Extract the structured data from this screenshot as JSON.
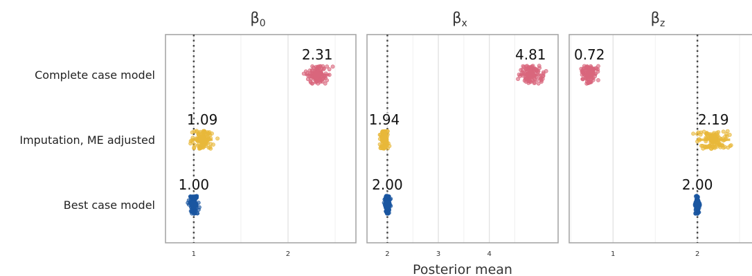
{
  "chart_data": {
    "type": "scatter",
    "x_axis_title": "Posterior mean",
    "rows": [
      "Complete case model",
      "Imputation, ME adjusted",
      "Best case model"
    ],
    "colors": {
      "Complete case model": "#d9667c",
      "Imputation, ME adjusted": "#e8b83a",
      "Best case model": "#1a56a0"
    },
    "reference_line": "dotted vertical line at the true parameter value",
    "facets": [
      {
        "title_main": "β",
        "title_sub": "0",
        "xlim": [
          0.7,
          2.72
        ],
        "ticks": [
          1,
          2
        ],
        "tick_labels": [
          "1",
          "2"
        ],
        "true_value": 1,
        "estimates": [
          {
            "row": "Complete case model",
            "mean": 2.31,
            "label": "2.31",
            "min": 2.1,
            "max": 2.67,
            "spread": 0.12
          },
          {
            "row": "Imputation, ME adjusted",
            "mean": 1.09,
            "label": "1.09",
            "min": 0.77,
            "max": 1.39,
            "spread": 0.1
          },
          {
            "row": "Best case model",
            "mean": 1.0,
            "label": "1.00",
            "min": 0.89,
            "max": 1.1,
            "spread": 0.04
          }
        ]
      },
      {
        "title_main": "β",
        "title_sub": "x",
        "xlim": [
          1.6,
          5.35
        ],
        "ticks": [
          2,
          3,
          4
        ],
        "tick_labels": [
          "2",
          "3",
          "4"
        ],
        "true_value": 2,
        "estimates": [
          {
            "row": "Complete case model",
            "mean": 4.81,
            "label": "4.81",
            "min": 4.3,
            "max": 5.3,
            "spread": 0.2
          },
          {
            "row": "Imputation, ME adjusted",
            "mean": 1.94,
            "label": "1.94",
            "min": 1.8,
            "max": 2.4,
            "spread": 0.07
          },
          {
            "row": "Best case model",
            "mean": 2.0,
            "label": "2.00",
            "min": 1.88,
            "max": 2.12,
            "spread": 0.05
          }
        ]
      },
      {
        "title_main": "β",
        "title_sub": "z",
        "xlim": [
          0.48,
          2.68
        ],
        "ticks": [
          1,
          2
        ],
        "tick_labels": [
          "1",
          "2"
        ],
        "true_value": 2,
        "estimates": [
          {
            "row": "Complete case model",
            "mean": 0.72,
            "label": "0.72",
            "min": 0.52,
            "max": 0.93,
            "spread": 0.08
          },
          {
            "row": "Imputation, ME adjusted",
            "mean": 2.19,
            "label": "2.19",
            "min": 1.8,
            "max": 2.66,
            "spread": 0.18
          },
          {
            "row": "Best case model",
            "mean": 2.0,
            "label": "2.00",
            "min": 1.96,
            "max": 2.05,
            "spread": 0.015
          }
        ]
      }
    ]
  }
}
